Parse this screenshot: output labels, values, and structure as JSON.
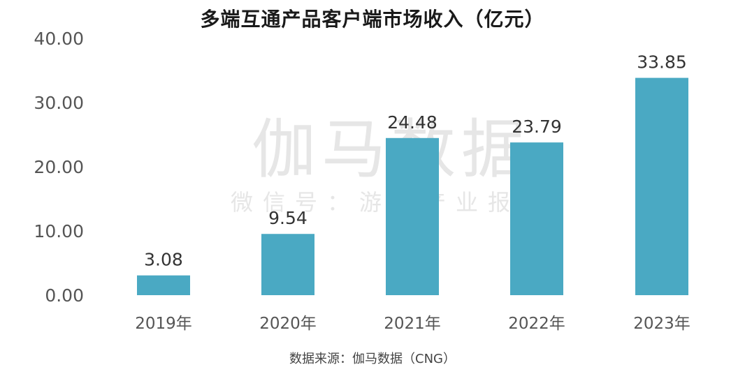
{
  "chart_data": {
    "type": "bar",
    "title": "多端互通产品客户端市场收入（亿元）",
    "categories": [
      "2019年",
      "2020年",
      "2021年",
      "2022年",
      "2023年"
    ],
    "values": [
      3.08,
      9.54,
      24.48,
      23.79,
      33.85
    ],
    "value_labels": [
      "3.08",
      "9.54",
      "24.48",
      "23.79",
      "33.85"
    ],
    "y_ticks": [
      "0.00",
      "10.00",
      "20.00",
      "30.00",
      "40.00"
    ],
    "ylim": [
      0,
      40
    ],
    "grid": false,
    "legend": "none",
    "bar_color": "#4aa9c3"
  },
  "watermark": {
    "line1": "伽马数据",
    "line2": "微信号：游戏产业报告"
  },
  "source": "数据来源：伽马数据（CNG）"
}
